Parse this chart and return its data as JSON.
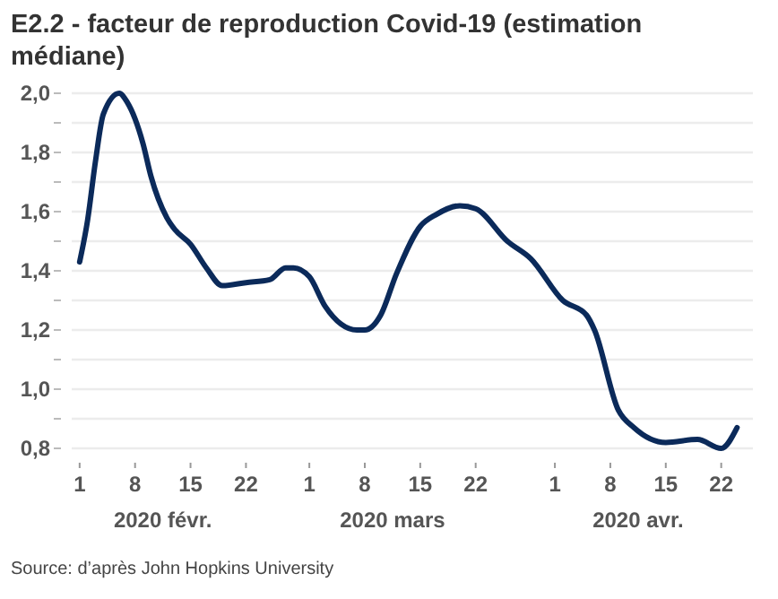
{
  "chart_data": {
    "type": "line",
    "title": "E2.2 - facteur de reproduction Covid-19 (estimation médiane)",
    "x": [
      "2020-02-01",
      "2020-02-02",
      "2020-02-03",
      "2020-02-04",
      "2020-02-06",
      "2020-02-07",
      "2020-02-09",
      "2020-02-10",
      "2020-02-12",
      "2020-02-13",
      "2020-02-15",
      "2020-02-17",
      "2020-02-19",
      "2020-02-22",
      "2020-02-25",
      "2020-02-27",
      "2020-02-28",
      "2020-03-01",
      "2020-03-03",
      "2020-03-05",
      "2020-03-07",
      "2020-03-08",
      "2020-03-10",
      "2020-03-12",
      "2020-03-15",
      "2020-03-17",
      "2020-03-20",
      "2020-03-22",
      "2020-03-26",
      "2020-03-29",
      "2020-04-02",
      "2020-04-05",
      "2020-04-06",
      "2020-04-09",
      "2020-04-11",
      "2020-04-15",
      "2020-04-19",
      "2020-04-22",
      "2020-04-24"
    ],
    "series": [
      {
        "color": "#0b2a5a",
        "values": [
          1.43,
          1.57,
          1.77,
          1.93,
          2.0,
          1.97,
          1.83,
          1.72,
          1.58,
          1.54,
          1.49,
          1.41,
          1.35,
          1.36,
          1.37,
          1.41,
          1.41,
          1.38,
          1.28,
          1.22,
          1.2,
          1.2,
          1.25,
          1.39,
          1.55,
          1.59,
          1.62,
          1.61,
          1.5,
          1.44,
          1.3,
          1.25,
          1.2,
          0.93,
          0.87,
          0.82,
          0.83,
          0.8,
          0.87
        ]
      }
    ],
    "xlim": [
      "2020-01-31",
      "2020-04-26"
    ],
    "xticks": [
      {
        "value": "2020-02-01",
        "label": "1"
      },
      {
        "value": "2020-02-08",
        "label": "8"
      },
      {
        "value": "2020-02-15",
        "label": "15"
      },
      {
        "value": "2020-02-22",
        "label": "22"
      },
      {
        "value": "2020-03-01",
        "label": "1"
      },
      {
        "value": "2020-03-08",
        "label": "8"
      },
      {
        "value": "2020-03-15",
        "label": "15"
      },
      {
        "value": "2020-03-22",
        "label": "22"
      },
      {
        "value": "2020-04-01",
        "label": "1"
      },
      {
        "value": "2020-04-08",
        "label": "8"
      },
      {
        "value": "2020-04-15",
        "label": "15"
      },
      {
        "value": "2020-04-22",
        "label": "22"
      }
    ],
    "ylim": [
      0.8,
      2.0
    ],
    "yticks": [
      {
        "value": 0.8,
        "label": "0,8"
      },
      {
        "value": 0.9,
        "label": null
      },
      {
        "value": 1.0,
        "label": "1,0"
      },
      {
        "value": 1.1,
        "label": null
      },
      {
        "value": 1.2,
        "label": "1,2"
      },
      {
        "value": 1.3,
        "label": null
      },
      {
        "value": 1.4,
        "label": "1,4"
      },
      {
        "value": 1.5,
        "label": null
      },
      {
        "value": 1.6,
        "label": "1,6"
      },
      {
        "value": 1.7,
        "label": null
      },
      {
        "value": 1.8,
        "label": "1,8"
      },
      {
        "value": 1.9,
        "label": null
      },
      {
        "value": 2.0,
        "label": "2,0"
      }
    ],
    "grid": "y",
    "marker": "none",
    "line_style": "solid",
    "annotations": [
      "2020 févr.",
      "2020 mars",
      "2020 avr.",
      "Source: d’après John Hopkins University"
    ]
  }
}
